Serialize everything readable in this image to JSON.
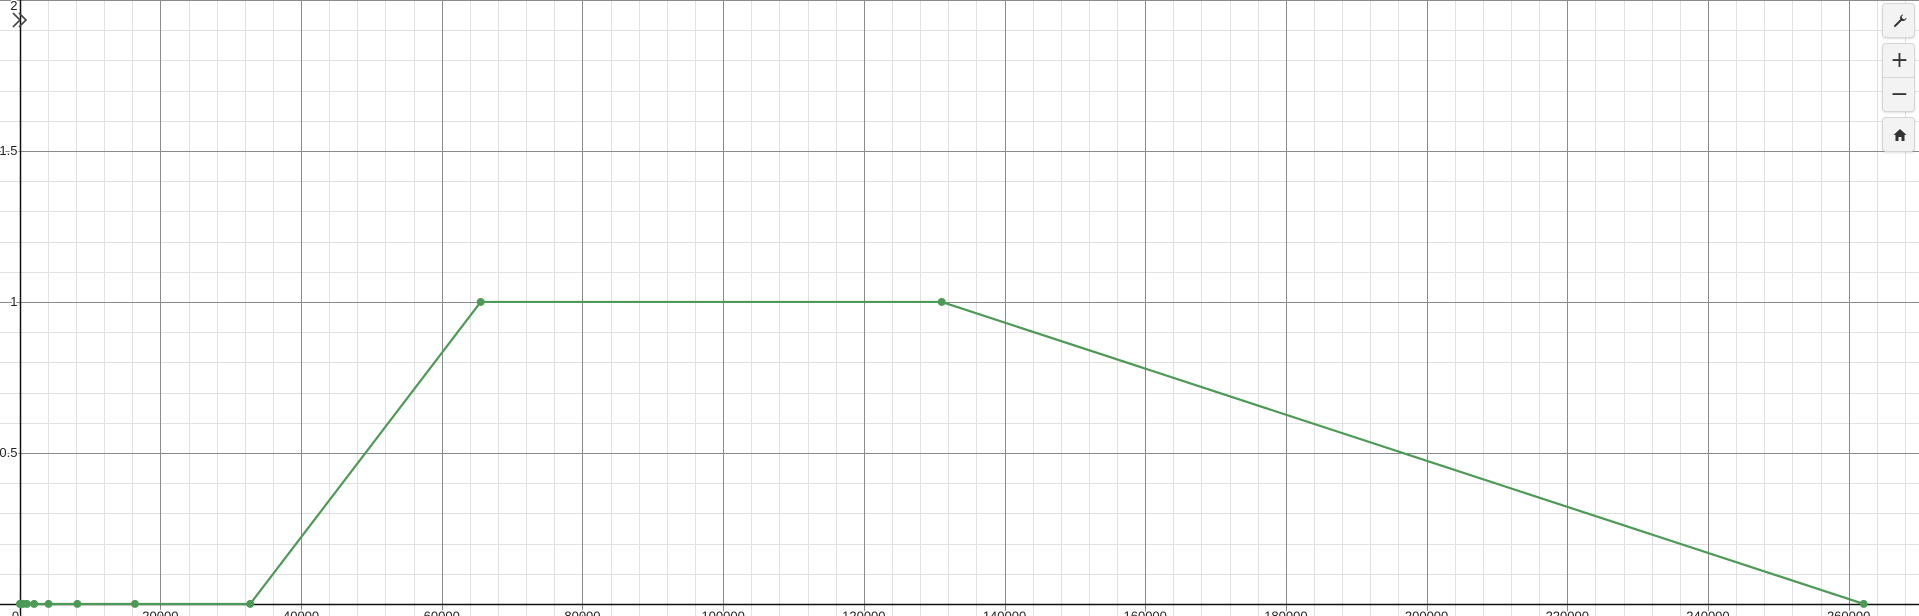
{
  "controls": {
    "settings_icon": "wrench-icon",
    "expand_icon": "double-chevron-right-icon",
    "zoom_in_label": "+",
    "zoom_out_label": "−",
    "home_icon": "home-icon"
  },
  "colors": {
    "series": "#4d9a56",
    "major_grid": "#8a8a8a",
    "minor_grid": "#e1e1e1",
    "axis": "#111111"
  },
  "chart_data": {
    "type": "line",
    "xlim": [
      -2800,
      270000
    ],
    "ylim": [
      -0.04,
      2.0
    ],
    "x_ticks": [
      {
        "value": 0,
        "label": "0"
      },
      {
        "value": 20000,
        "label": "20000"
      },
      {
        "value": 40000,
        "label": "40000"
      },
      {
        "value": 60000,
        "label": "60000"
      },
      {
        "value": 80000,
        "label": "80000"
      },
      {
        "value": 100000,
        "label": "100000"
      },
      {
        "value": 120000,
        "label": "120000"
      },
      {
        "value": 140000,
        "label": "140000"
      },
      {
        "value": 160000,
        "label": "160000"
      },
      {
        "value": 180000,
        "label": "180000"
      },
      {
        "value": 200000,
        "label": "200000"
      },
      {
        "value": 220000,
        "label": "220000"
      },
      {
        "value": 240000,
        "label": "240000"
      },
      {
        "value": 260000,
        "label": "260000"
      }
    ],
    "y_ticks": [
      {
        "value": 0.5,
        "label": "0.5"
      },
      {
        "value": 1,
        "label": "1"
      },
      {
        "value": 1.5,
        "label": "1.5"
      },
      {
        "value": 2,
        "label": "2"
      }
    ],
    "x_minor_step": 4000,
    "y_minor_step": 0.1,
    "grid": true,
    "series": [
      {
        "points": [
          [
            32,
            0
          ],
          [
            64,
            0
          ],
          [
            128,
            0
          ],
          [
            256,
            0
          ],
          [
            512,
            0
          ],
          [
            1024,
            0
          ],
          [
            2048,
            0
          ],
          [
            4096,
            0
          ],
          [
            8192,
            0
          ],
          [
            16384,
            0
          ],
          [
            32768,
            0
          ],
          [
            65536,
            1
          ],
          [
            131072,
            1
          ],
          [
            262144,
            0
          ]
        ]
      }
    ]
  }
}
